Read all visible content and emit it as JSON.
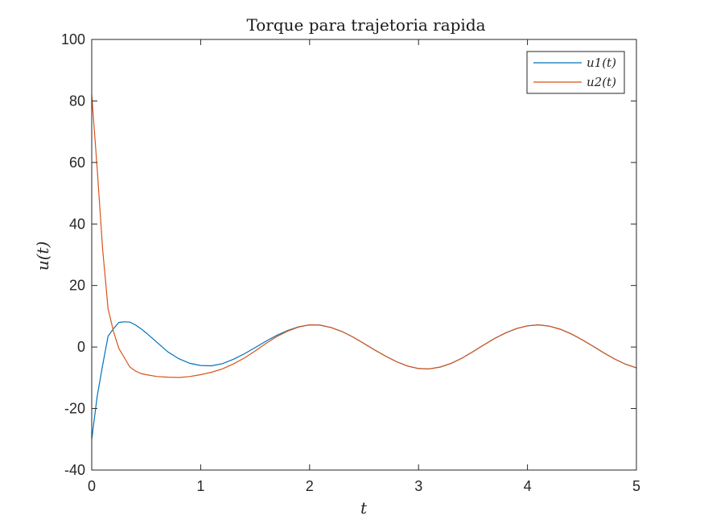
{
  "chart_data": {
    "type": "line",
    "title": "Torque para trajetoria rapida",
    "xlabel": "t",
    "ylabel": "u(t)",
    "xlim": [
      0,
      5
    ],
    "ylim": [
      -40,
      100
    ],
    "xticks": [
      0,
      1,
      2,
      3,
      4,
      5
    ],
    "yticks": [
      -40,
      -20,
      0,
      20,
      40,
      60,
      80,
      100
    ],
    "grid": false,
    "legend_position": "top-right",
    "x": [
      0,
      0.05,
      0.1,
      0.15,
      0.2,
      0.25,
      0.3,
      0.35,
      0.4,
      0.45,
      0.5,
      0.6,
      0.7,
      0.8,
      0.9,
      1.0,
      1.1,
      1.2,
      1.3,
      1.4,
      1.5,
      1.6,
      1.7,
      1.8,
      1.9,
      2.0,
      2.1,
      2.2,
      2.3,
      2.4,
      2.5,
      2.6,
      2.7,
      2.8,
      2.9,
      3.0,
      3.1,
      3.2,
      3.3,
      3.4,
      3.5,
      3.6,
      3.7,
      3.8,
      3.9,
      4.0,
      4.1,
      4.2,
      4.3,
      4.4,
      4.5,
      4.6,
      4.7,
      4.8,
      4.9,
      5.0
    ],
    "series": [
      {
        "name": "u1(t)",
        "color": "#0072BD",
        "values": [
          -30,
          -16,
          -6,
          3.5,
          6,
          8,
          8.2,
          8.1,
          7.2,
          6,
          4.6,
          1.5,
          -1.6,
          -3.8,
          -5.3,
          -6,
          -6.1,
          -5.4,
          -4,
          -2.2,
          -0.2,
          1.9,
          3.8,
          5.4,
          6.6,
          7.2,
          7.1,
          6.3,
          5,
          3.2,
          1.1,
          -1,
          -3,
          -4.8,
          -6.2,
          -7,
          -7.1,
          -6.5,
          -5.3,
          -3.6,
          -1.5,
          0.7,
          2.8,
          4.6,
          6,
          6.9,
          7.2,
          6.8,
          5.8,
          4.3,
          2.4,
          0.3,
          -1.9,
          -3.9,
          -5.6,
          -6.8
        ]
      },
      {
        "name": "u2(t)",
        "color": "#D95319",
        "values": [
          82,
          58,
          32,
          12.5,
          5,
          -0.5,
          -3.5,
          -6.5,
          -7.8,
          -8.6,
          -9,
          -9.6,
          -9.8,
          -9.9,
          -9.6,
          -9,
          -8.2,
          -7.1,
          -5.5,
          -3.6,
          -1.3,
          1.2,
          3.4,
          5.2,
          6.5,
          7.2,
          7.1,
          6.3,
          5,
          3.2,
          1.1,
          -1,
          -3,
          -4.8,
          -6.2,
          -7,
          -7.1,
          -6.5,
          -5.3,
          -3.6,
          -1.5,
          0.7,
          2.8,
          4.6,
          6,
          6.9,
          7.2,
          6.8,
          5.8,
          4.3,
          2.4,
          0.3,
          -1.9,
          -3.9,
          -5.6,
          -6.8
        ]
      }
    ]
  }
}
